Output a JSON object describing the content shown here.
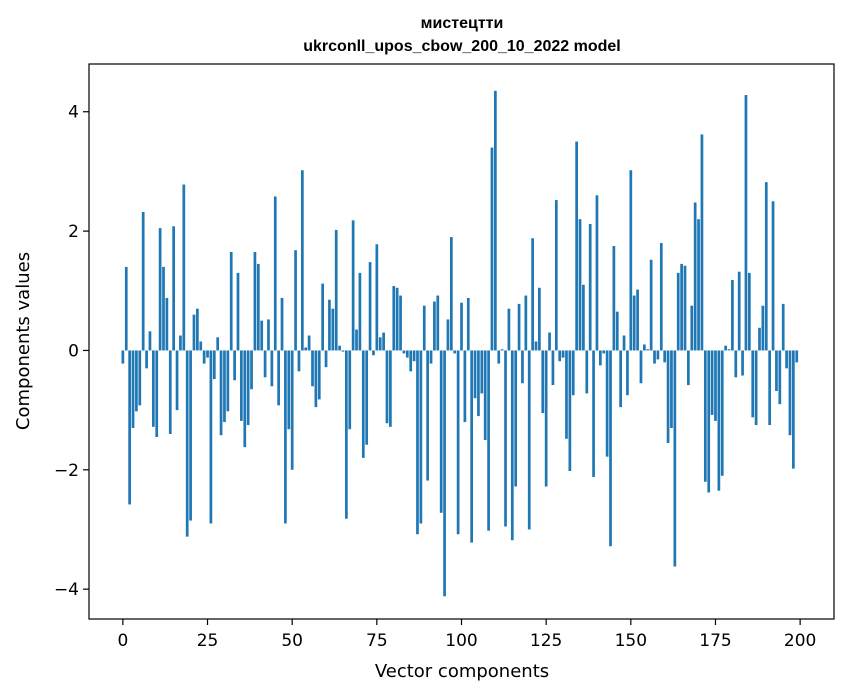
{
  "chart_data": {
    "type": "bar",
    "title_line1": "мистецтти",
    "title_line2": "ukrconll_upos_cbow_200_10_2022 model",
    "xlabel": "Vector components",
    "ylabel": "Components values",
    "xlim": [
      -10,
      210
    ],
    "ylim": [
      -4.5,
      4.8
    ],
    "x_ticks": [
      0,
      25,
      50,
      75,
      100,
      125,
      150,
      175,
      200
    ],
    "x_tick_labels": [
      "0",
      "25",
      "50",
      "75",
      "100",
      "125",
      "150",
      "175",
      "200"
    ],
    "y_ticks": [
      -4,
      -2,
      0,
      2,
      4
    ],
    "y_tick_labels": [
      "−4",
      "−2",
      "0",
      "2",
      "4"
    ],
    "grid": false,
    "bar_color": "#1f77b4",
    "values": [
      -0.22,
      1.4,
      -2.58,
      -1.3,
      -1.02,
      -0.92,
      2.32,
      -0.3,
      0.32,
      -1.28,
      -1.45,
      2.05,
      1.4,
      0.88,
      -1.4,
      2.08,
      -1.0,
      0.25,
      2.78,
      -3.12,
      -2.85,
      0.6,
      0.7,
      0.15,
      -0.22,
      -0.12,
      -2.9,
      -0.48,
      0.22,
      -1.42,
      -1.2,
      -1.02,
      1.65,
      -0.5,
      1.3,
      -1.18,
      -1.62,
      -1.25,
      -0.65,
      1.65,
      1.45,
      0.5,
      -0.45,
      0.52,
      -0.6,
      2.58,
      -0.92,
      0.88,
      -2.9,
      -1.32,
      -2.0,
      1.68,
      -0.35,
      3.02,
      0.05,
      0.25,
      -0.6,
      -0.95,
      -0.82,
      1.12,
      -0.28,
      0.85,
      0.7,
      2.02,
      0.08,
      -0.02,
      -2.82,
      -1.32,
      2.18,
      0.35,
      1.3,
      -1.8,
      -1.58,
      1.48,
      -0.08,
      1.78,
      0.22,
      0.3,
      -1.22,
      -1.28,
      1.08,
      1.05,
      0.92,
      -0.05,
      -0.12,
      -0.35,
      -0.18,
      -3.08,
      -2.9,
      0.75,
      -2.18,
      -0.22,
      0.82,
      0.92,
      -2.72,
      -4.12,
      0.52,
      1.9,
      -0.05,
      -3.08,
      0.8,
      -1.2,
      0.88,
      -3.22,
      -0.8,
      -1.1,
      -0.72,
      -1.5,
      -3.02,
      3.4,
      4.35,
      -0.22,
      0.02,
      -2.95,
      0.7,
      -3.18,
      -2.28,
      0.78,
      -0.55,
      0.92,
      -3.0,
      1.88,
      0.15,
      1.05,
      -1.05,
      -2.28,
      0.3,
      -0.58,
      2.52,
      -0.18,
      -0.12,
      -1.48,
      -2.02,
      -0.75,
      3.5,
      2.2,
      1.1,
      -0.72,
      2.12,
      -2.12,
      2.6,
      -0.25,
      -0.05,
      -1.78,
      -3.28,
      1.75,
      0.65,
      -0.95,
      0.25,
      -0.75,
      3.02,
      0.92,
      1.02,
      -0.55,
      0.1,
      0.02,
      1.52,
      -0.22,
      -0.15,
      1.8,
      -0.2,
      -1.55,
      -1.3,
      -3.62,
      1.3,
      1.45,
      1.42,
      -0.58,
      0.75,
      2.48,
      2.2,
      3.62,
      -2.2,
      -2.38,
      -1.08,
      -1.18,
      -2.35,
      -2.1,
      0.08,
      0.02,
      1.18,
      -0.45,
      1.32,
      -0.42,
      4.28,
      1.3,
      -1.12,
      -1.25,
      0.38,
      0.75,
      2.82,
      -1.25,
      2.5,
      -0.68,
      -0.9,
      0.78,
      -0.3,
      -1.42,
      -1.98,
      -0.2
    ]
  }
}
